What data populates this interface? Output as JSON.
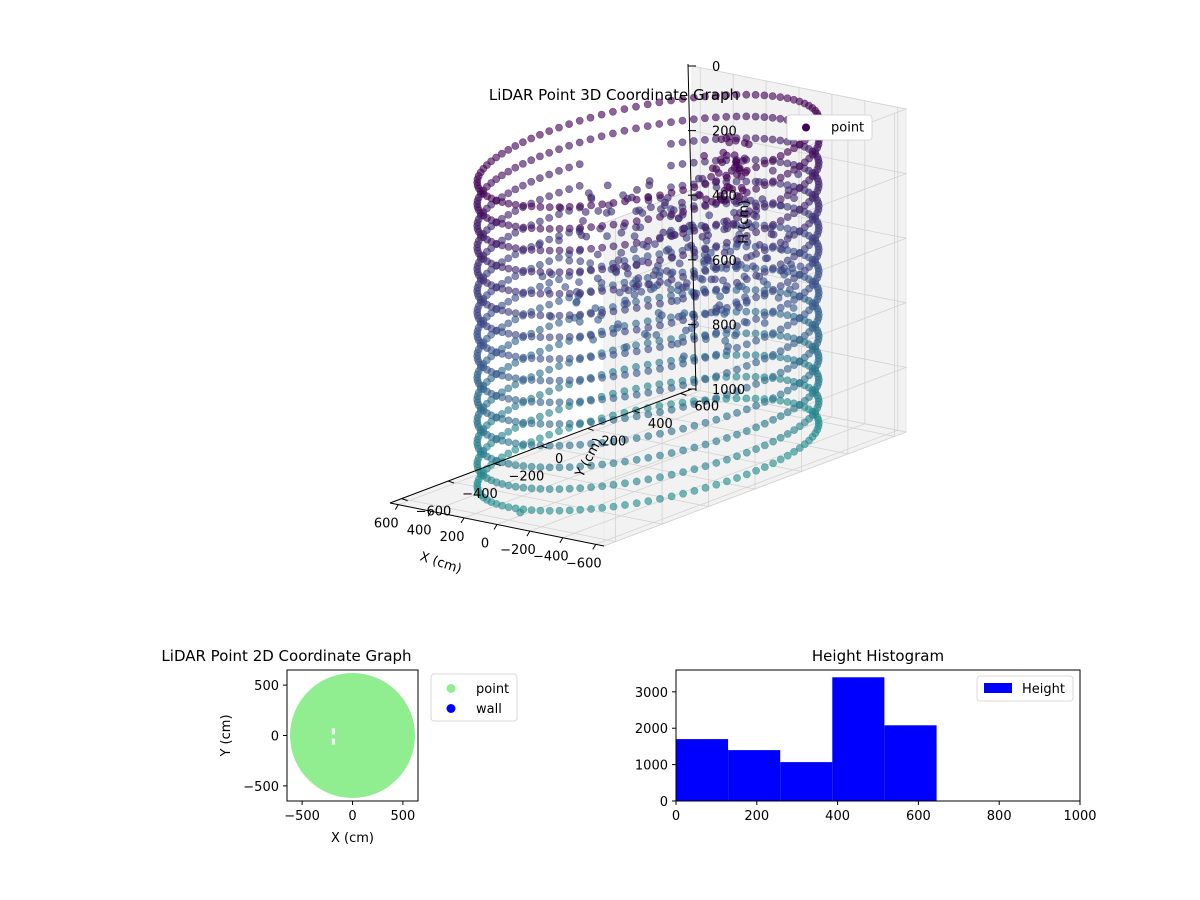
{
  "chart_data": [
    {
      "type": "scatter3d",
      "title": "LiDAR Point 3D Coordinate Graph",
      "xlabel": "X (cm)",
      "ylabel": "Y (cm)",
      "zlabel": "H (cm)",
      "xlim": [
        -650,
        650
      ],
      "ylim": [
        -650,
        650
      ],
      "zlim": [
        0,
        1000
      ],
      "z_inverted": true,
      "x_ticks": [
        -600,
        -400,
        -200,
        0,
        200,
        400,
        600
      ],
      "y_ticks": [
        -600,
        -400,
        -200,
        0,
        200,
        400,
        600
      ],
      "z_ticks": [
        0,
        200,
        400,
        600,
        800,
        1000
      ],
      "grid": true,
      "legend": {
        "placement": "top-right",
        "entries": [
          "point"
        ]
      },
      "colormap": [
        "#440154",
        "#3b528b",
        "#21918c"
      ],
      "structure": {
        "wall_radius": 600,
        "wall_height_range": [
          0,
          1000
        ],
        "floor_scatter_height_range": [
          200,
          600
        ]
      },
      "outliers": [
        {
          "x": 0,
          "y": -550,
          "h": 990
        },
        {
          "x": 620,
          "y": 620,
          "h": 500
        },
        {
          "x": 650,
          "y": 650,
          "h": 700
        }
      ]
    },
    {
      "type": "scatter",
      "title": "LiDAR Point 2D Coordinate Graph",
      "xlabel": "X (cm)",
      "ylabel": "Y (cm)",
      "xlim": [
        -650,
        650
      ],
      "ylim": [
        -650,
        650
      ],
      "x_ticks": [
        -500,
        0,
        500
      ],
      "y_ticks": [
        -500,
        0,
        500
      ],
      "legend": {
        "placement": "outside-right",
        "entries": [
          "point",
          "wall"
        ]
      },
      "series": [
        {
          "name": "point",
          "color": "#90ee90",
          "shape": "disk",
          "center": [
            0,
            0
          ],
          "radius": 620
        },
        {
          "name": "wall",
          "color": "#0000ff",
          "points": []
        }
      ],
      "gaps": [
        {
          "x": -190,
          "y": 40
        },
        {
          "x": -190,
          "y": -60
        }
      ]
    },
    {
      "type": "bar",
      "title": "Height Histogram",
      "xlim": [
        0,
        1000
      ],
      "ylim": [
        0,
        3600
      ],
      "x_ticks": [
        0,
        200,
        400,
        600,
        800,
        1000
      ],
      "y_ticks": [
        0,
        1000,
        2000,
        3000
      ],
      "legend": {
        "placement": "top-right",
        "entries": [
          "Height"
        ]
      },
      "series": [
        {
          "name": "Height",
          "color": "#0000ff",
          "bins": [
            {
              "start": 0,
              "end": 129,
              "count": 1700
            },
            {
              "start": 129,
              "end": 258,
              "count": 1400
            },
            {
              "start": 258,
              "end": 387,
              "count": 1070
            },
            {
              "start": 387,
              "end": 516,
              "count": 3400
            },
            {
              "start": 516,
              "end": 645,
              "count": 2080
            }
          ]
        }
      ]
    }
  ]
}
